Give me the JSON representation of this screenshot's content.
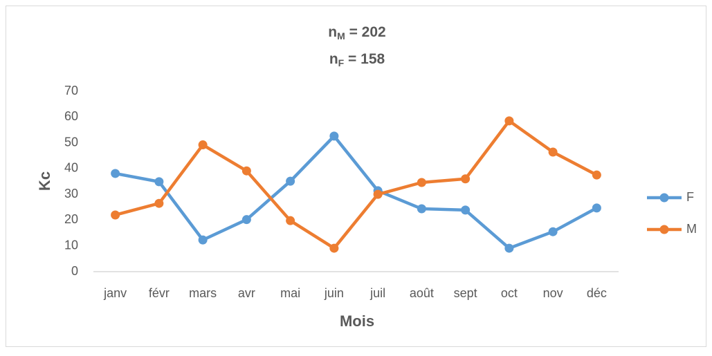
{
  "chart_data": {
    "type": "line",
    "title": [
      {
        "base": "n",
        "sub": "M",
        "rest": " = 202"
      },
      {
        "base": "n",
        "sub": "F",
        "rest": " = 158"
      }
    ],
    "xlabel": "Mois",
    "ylabel": "Kc",
    "categories": [
      "janv",
      "févr",
      "mars",
      "avr",
      "mai",
      "juin",
      "juil",
      "août",
      "sept",
      "oct",
      "nov",
      "déc"
    ],
    "series": [
      {
        "name": "F",
        "color": "#5b9bd5",
        "values": [
          38.1,
          34.9,
          12.3,
          20.2,
          35.1,
          52.6,
          31.4,
          24.4,
          23.9,
          9.1,
          15.5,
          24.7
        ]
      },
      {
        "name": "M",
        "color": "#ed7d31",
        "values": [
          22.0,
          26.5,
          49.2,
          39.1,
          19.8,
          9.1,
          30.0,
          34.6,
          36.0,
          58.5,
          46.4,
          37.5
        ]
      }
    ],
    "ylim": [
      0,
      70
    ],
    "yticks": [
      0,
      10,
      20,
      30,
      40,
      50,
      60,
      70
    ],
    "grid": false,
    "legend": "right"
  }
}
